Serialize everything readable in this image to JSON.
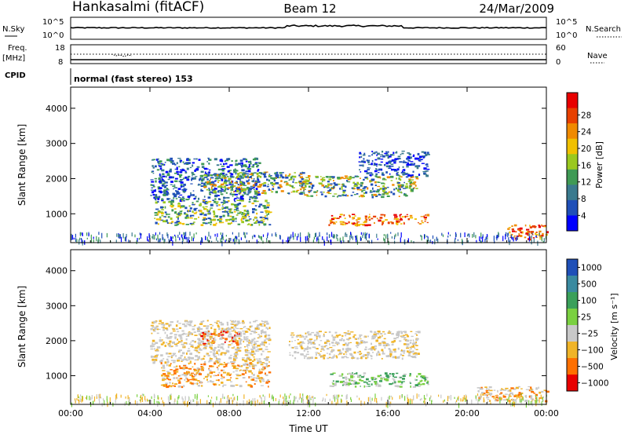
{
  "header": {
    "station": "Hankasalmi (fitACF)",
    "beam": "Beam 12",
    "date": "24/Mar/2009"
  },
  "sky_panel": {
    "left_label": "N.Sky",
    "right_label": "N.Search",
    "ytick_top": "10^5",
    "ytick_bottom": "10^0"
  },
  "freq_panel": {
    "left_label_1": "Freq.",
    "left_label_2": "[MHz]",
    "left_tick_top": "18",
    "left_tick_bottom": "8",
    "right_label": "Nave",
    "right_tick_top": "60",
    "right_tick_bottom": "0"
  },
  "cpid": {
    "label": "CPID",
    "value": "normal (fast stereo) 153"
  },
  "colors": {
    "power": [
      "#0000ff",
      "#1f4fb8",
      "#3a7a8e",
      "#3f9a55",
      "#9ac81e",
      "#f0c000",
      "#f08a00",
      "#e84000",
      "#e80000"
    ],
    "velocity": [
      "#e80000",
      "#ff7000",
      "#f0b428",
      "#c8c8c8",
      "#7ad040",
      "#3aa05a",
      "#3a8aa0",
      "#1f50b8"
    ]
  },
  "chart_data": [
    {
      "type": "heatmap",
      "panel": "power",
      "xlabel": "",
      "ylabel": "Slant Range [km]",
      "x_ticks": [
        "00:00",
        "04:00",
        "08:00",
        "12:00",
        "16:00",
        "20:00",
        "00:00"
      ],
      "y_ticks": [
        "1000",
        "2000",
        "3000",
        "4000"
      ],
      "xlim_hours": [
        0,
        24
      ],
      "ylim_km": [
        180,
        4600
      ],
      "colorbar": {
        "label": "Power [dB]",
        "tick_labels": [
          "4",
          "8",
          "12",
          "16",
          "20",
          "24",
          "28"
        ]
      },
      "echo_regions": [
        {
          "t0": 4.0,
          "t1": 9.5,
          "r0": 1400,
          "r1": 2600,
          "level": "weak-moderate"
        },
        {
          "t0": 6.5,
          "t1": 12.0,
          "r0": 1600,
          "r1": 2200,
          "level": "moderate"
        },
        {
          "t0": 11.5,
          "t1": 17.5,
          "r0": 1500,
          "r1": 2100,
          "level": "moderate"
        },
        {
          "t0": 14.5,
          "t1": 18.0,
          "r0": 2100,
          "r1": 2800,
          "level": "weak"
        },
        {
          "t0": 4.2,
          "t1": 10.0,
          "r0": 700,
          "r1": 1400,
          "level": "moderate-strong"
        },
        {
          "t0": 13.0,
          "t1": 18.0,
          "r0": 700,
          "r1": 1000,
          "level": "strong"
        },
        {
          "t0": 22.0,
          "t1": 24.0,
          "r0": 300,
          "r1": 700,
          "level": "strong"
        }
      ]
    },
    {
      "type": "heatmap",
      "panel": "velocity",
      "xlabel": "Time UT",
      "ylabel": "Slant Range [km]",
      "x_ticks": [
        "00:00",
        "04:00",
        "08:00",
        "12:00",
        "16:00",
        "20:00",
        "00:00"
      ],
      "y_ticks": [
        "1000",
        "2000",
        "3000",
        "4000"
      ],
      "xlim_hours": [
        0,
        24
      ],
      "ylim_km": [
        180,
        4600
      ],
      "colorbar": {
        "label": "Velocity [m s⁻¹]",
        "tick_labels": [
          "1000",
          "500",
          "100",
          "25",
          "−25",
          "−100",
          "−500",
          "−1000"
        ]
      },
      "echo_regions": [
        {
          "t0": 4.0,
          "t1": 10.0,
          "r0": 1400,
          "r1": 2600,
          "velocity": "low (~0)"
        },
        {
          "t0": 6.5,
          "t1": 8.5,
          "r0": 1900,
          "r1": 2300,
          "velocity": "negative (-100 to -500)"
        },
        {
          "t0": 11.0,
          "t1": 17.5,
          "r0": 1500,
          "r1": 2300,
          "velocity": "low (~0)"
        },
        {
          "t0": 4.5,
          "t1": 10.0,
          "r0": 700,
          "r1": 1400,
          "velocity": "negative (-25 to -100)"
        },
        {
          "t0": 13.0,
          "t1": 18.0,
          "r0": 700,
          "r1": 1100,
          "velocity": "positive (25 to 100)"
        },
        {
          "t0": 20.5,
          "t1": 24.0,
          "r0": 300,
          "r1": 700,
          "velocity": "negative (-25 to -100)"
        }
      ]
    }
  ]
}
